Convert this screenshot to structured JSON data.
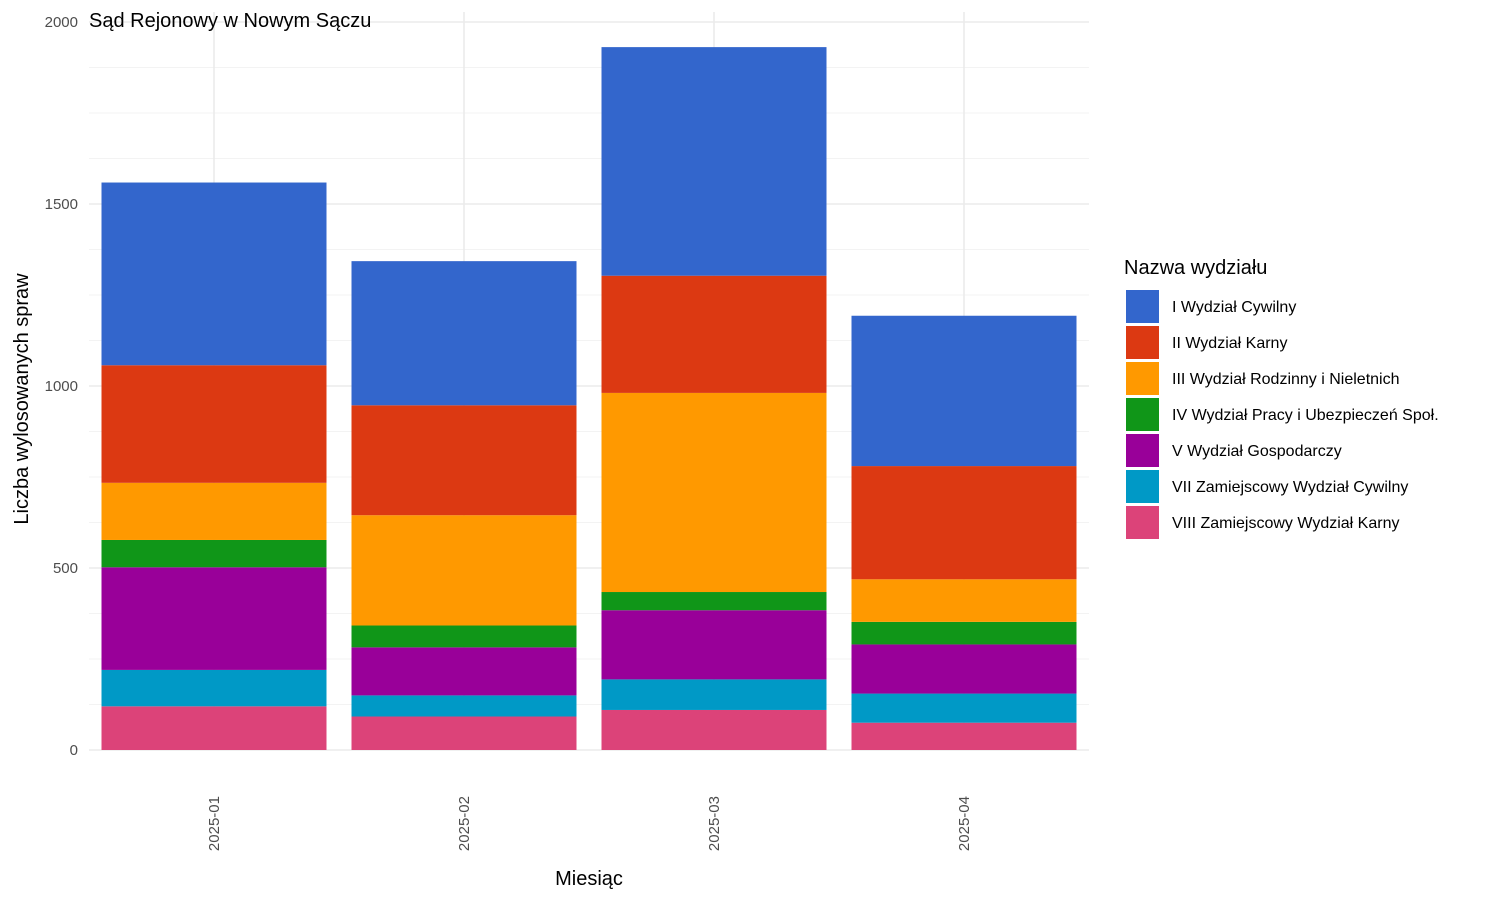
{
  "chart_data": {
    "type": "bar",
    "stacked": true,
    "title": "Sąd Rejonowy w Nowym Sączu",
    "xlabel": "Miesiąc",
    "ylabel": "Liczba wylosowanych spraw",
    "ylim": [
      0,
      2000
    ],
    "yticks": [
      0,
      500,
      1000,
      1500,
      2000
    ],
    "grid": true,
    "legend_title": "Nazwa wydziału",
    "legend_position": "right",
    "categories": [
      "2025-01",
      "2025-02",
      "2025-03",
      "2025-04"
    ],
    "series": [
      {
        "name": "VIII Zamiejscowy Wydział Karny",
        "color": "#DC4379",
        "values": [
          120,
          92,
          110,
          75
        ]
      },
      {
        "name": "VII Zamiejscowy Wydział Cywilny",
        "color": "#0099C6",
        "values": [
          100,
          58,
          84,
          80
        ]
      },
      {
        "name": "V Wydział Gospodarczy",
        "color": "#990099",
        "values": [
          282,
          132,
          190,
          135
        ]
      },
      {
        "name": "IV Wydział Pracy i Ubezpieczeń Społ.",
        "color": "#109618",
        "values": [
          75,
          60,
          50,
          62
        ]
      },
      {
        "name": "III Wydział Rodzinny i Nieletnich",
        "color": "#FF9900",
        "values": [
          157,
          303,
          547,
          117
        ]
      },
      {
        "name": "II Wydział Karny",
        "color": "#DC3912",
        "values": [
          323,
          302,
          322,
          311
        ]
      },
      {
        "name": "I Wydział Cywilny",
        "color": "#3366CC",
        "values": [
          502,
          396,
          628,
          413
        ]
      }
    ],
    "legend_order": [
      "I Wydział Cywilny",
      "II Wydział Karny",
      "III Wydział Rodzinny i Nieletnich",
      "IV Wydział Pracy i Ubezpieczeń Społ.",
      "V Wydział Gospodarczy",
      "VII Zamiejscowy Wydział Cywilny",
      "VIII Zamiejscowy Wydział Karny"
    ]
  }
}
